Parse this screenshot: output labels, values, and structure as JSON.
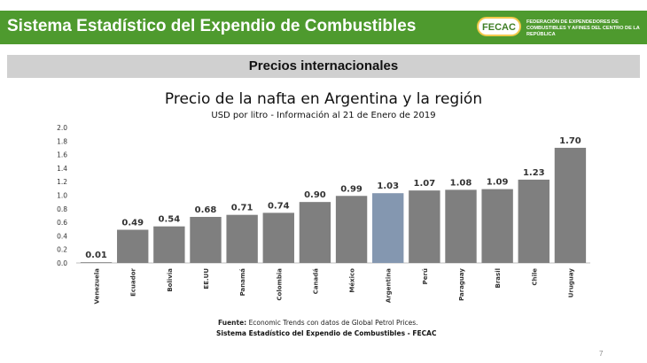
{
  "header": {
    "title": "Sistema Estadístico del Expendio de Combustibles",
    "logo_text": "FECAC",
    "logo_caption": "FEDERACIÓN DE EXPENDEDORES DE COMBUSTIBLES Y AFINES DEL CENTRO DE LA REPÚBLICA",
    "color": "#4e9a2e"
  },
  "section": {
    "title": "Precios internacionales"
  },
  "chart_data": {
    "type": "bar",
    "title": "Precio de la nafta en Argentina y la región",
    "subtitle": "USD por litro - Información al 21 de Enero de 2019",
    "categories": [
      "Venezuela",
      "Ecuador",
      "Bolivia",
      "EE.UU",
      "Panamá",
      "Colombia",
      "Canadá",
      "México",
      "Argentina",
      "Perú",
      "Paraguay",
      "Brasil",
      "Chile",
      "Uruguay"
    ],
    "values": [
      0.01,
      0.49,
      0.54,
      0.68,
      0.71,
      0.74,
      0.9,
      0.99,
      1.03,
      1.07,
      1.08,
      1.09,
      1.23,
      1.7
    ],
    "data_labels": [
      "0.01",
      "0.49",
      "0.54",
      "0.68",
      "0.71",
      "0.74",
      "0.90",
      "0.99",
      "1.03",
      "1.07",
      "1.08",
      "1.09",
      "1.23",
      "1.70"
    ],
    "ylim": [
      0,
      2.0
    ],
    "yticks": [
      "0.0",
      "0.2",
      "0.4",
      "0.6",
      "0.8",
      "1.0",
      "1.2",
      "1.4",
      "1.6",
      "1.8",
      "2.0"
    ],
    "xlabel": "",
    "ylabel": "",
    "grid": false,
    "bar_color": "#7f7f7f",
    "highlight_category": "Argentina",
    "highlight_color": "#8497b0"
  },
  "footnote": {
    "label": "Fuente:",
    "text": " Economic Trends con datos de Global Petrol Prices.",
    "line2": "Sistema Estadístico del Expendio de Combustibles - FECAC"
  },
  "page_number": "7"
}
